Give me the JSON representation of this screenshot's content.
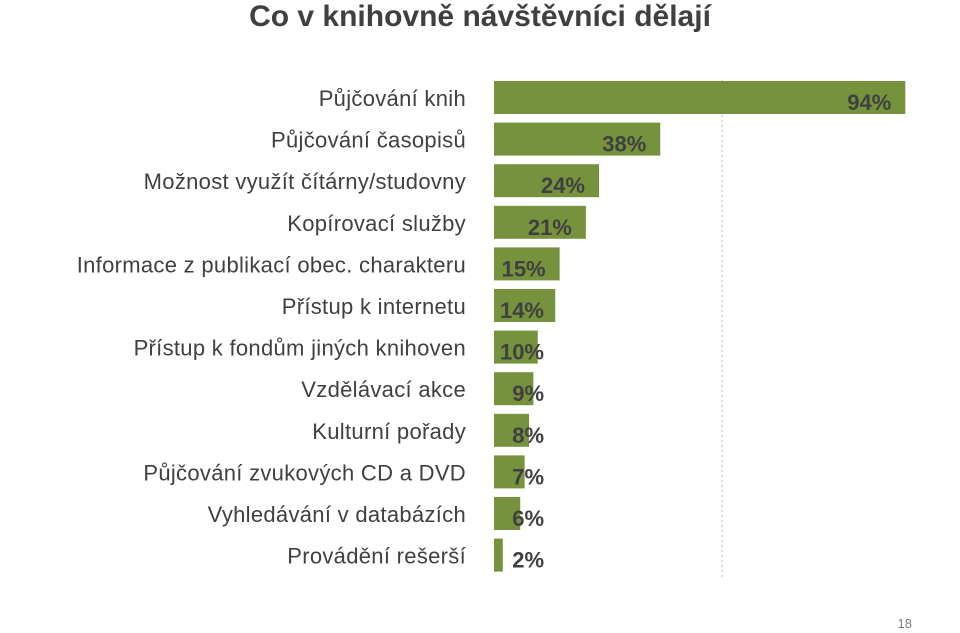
{
  "page": {
    "title": "Co v knihovně návštěvníci dělají",
    "page_number": "18"
  },
  "chart_data": {
    "type": "bar",
    "orientation": "horizontal",
    "title": "Co v knihovně návštěvníci dělají",
    "categories": [
      "Půjčování knih",
      "Půjčování časopisů",
      "Možnost využít čítárny/studovny",
      "Kopírovací služby",
      "Informace z publikací obec. charakteru",
      "Přístup k internetu",
      "Přístup k fondům jiných knihoven",
      "Vzdělávací akce",
      "Kulturní pořady",
      "Půjčování zvukových CD a DVD",
      "Vyhledávání v databázích",
      "Provádění rešerší"
    ],
    "values": [
      94,
      38,
      24,
      21,
      15,
      14,
      10,
      9,
      8,
      7,
      6,
      2
    ],
    "value_labels": [
      "94%",
      "38%",
      "24%",
      "21%",
      "15%",
      "14%",
      "10%",
      "9%",
      "8%",
      "7%",
      "6%",
      "2%"
    ],
    "unit": "%",
    "xlim": [
      0,
      100
    ],
    "grid": "vertical dotted",
    "bar_color": "#76923c",
    "label_color": "#404040"
  }
}
